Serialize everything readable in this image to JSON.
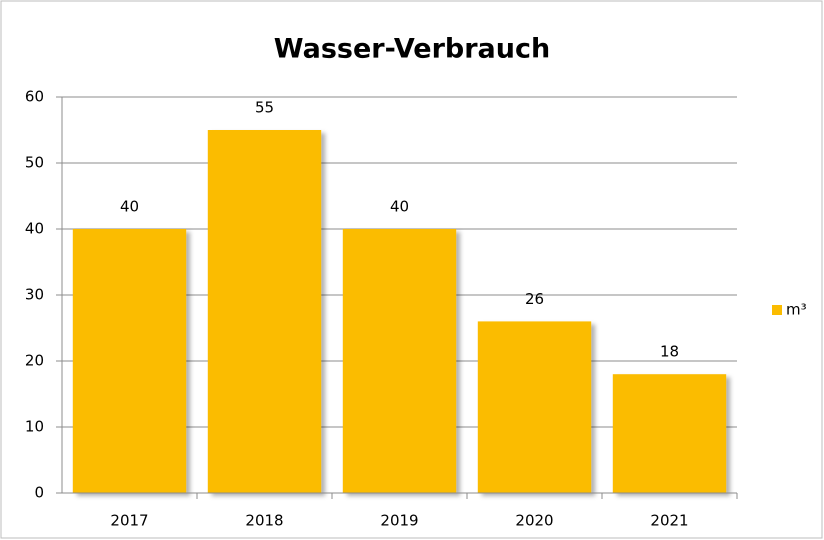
{
  "chart_data": {
    "type": "bar",
    "title": "Wasser-Verbrauch",
    "categories": [
      "2017",
      "2018",
      "2019",
      "2020",
      "2021"
    ],
    "series": [
      {
        "name": "m³",
        "color": "#fbbc00",
        "values": [
          40,
          55,
          40,
          26,
          18
        ]
      }
    ],
    "ylim": [
      0,
      60
    ],
    "yticks": [
      0,
      10,
      20,
      30,
      40,
      50,
      60
    ],
    "grid": true,
    "legend": "right"
  }
}
